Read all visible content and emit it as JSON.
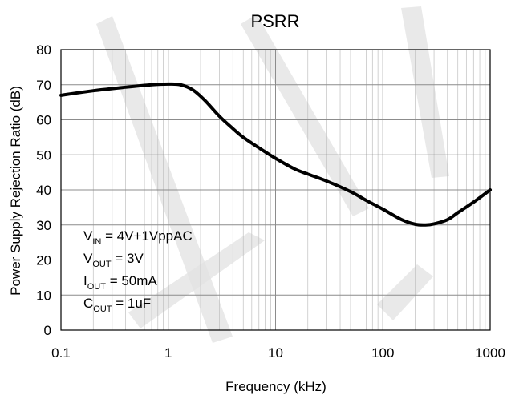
{
  "chart_data": {
    "type": "line",
    "title": "PSRR",
    "xlabel": "Frequency (kHz)",
    "ylabel": "Power Supply Rejection Ratio (dB)",
    "xscale": "log",
    "xlim": [
      0.1,
      1000
    ],
    "ylim": [
      0,
      80
    ],
    "x_ticks": [
      0.1,
      1,
      10,
      100,
      1000
    ],
    "x_tick_labels": [
      "0.1",
      "1",
      "10",
      "100",
      "1000"
    ],
    "y_ticks": [
      0,
      10,
      20,
      30,
      40,
      50,
      60,
      70,
      80
    ],
    "y_tick_labels": [
      "0",
      "10",
      "20",
      "30",
      "40",
      "50",
      "60",
      "70",
      "80"
    ],
    "grid": true,
    "series": [
      {
        "x": [
          0.1,
          0.2,
          0.4,
          0.7,
          1.0,
          1.3,
          1.7,
          2.2,
          3,
          4,
          5,
          7,
          10,
          15,
          20,
          30,
          50,
          70,
          100,
          150,
          200,
          250,
          300,
          400,
          500,
          700,
          1000
        ],
        "y": [
          67,
          68.3,
          69.3,
          70,
          70.2,
          70,
          68.5,
          65.5,
          61,
          57.5,
          55,
          52,
          49,
          46,
          44.5,
          42.5,
          39.5,
          37,
          34.5,
          31.5,
          30.2,
          30,
          30.3,
          31.5,
          33.5,
          36.5,
          40
        ]
      }
    ],
    "annotations": [
      {
        "main": "V",
        "sub": "IN",
        "rest": " = 4V+1VppAC"
      },
      {
        "main": "V",
        "sub": "OUT",
        "rest": " = 3V"
      },
      {
        "main": "I",
        "sub": "OUT",
        "rest": " = 50mA"
      },
      {
        "main": "C",
        "sub": "OUT",
        "rest": " = 1uF"
      }
    ]
  },
  "colors": {
    "line": "#000000",
    "grid": "#bfbfbf",
    "watermark": "#e2e2e2"
  }
}
